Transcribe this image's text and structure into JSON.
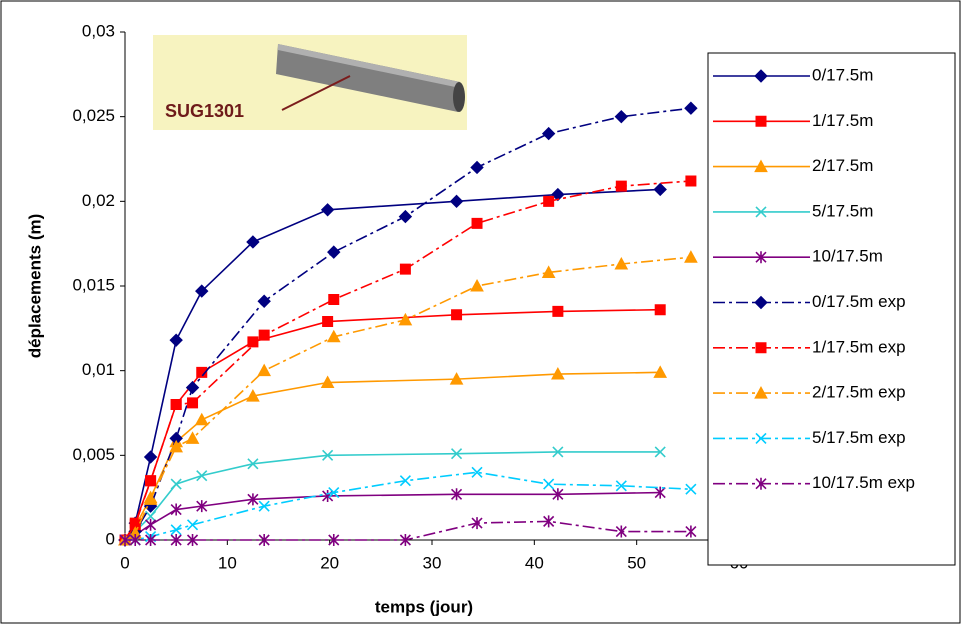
{
  "chart_data": {
    "type": "line",
    "xlabel": "temps (jour)",
    "ylabel": "déplacements (m)",
    "annotations": [
      "SUG1301"
    ],
    "xlim": [
      0,
      60
    ],
    "xticks": [
      0,
      10,
      20,
      30,
      40,
      50,
      60
    ],
    "ylim": [
      0,
      0.03
    ],
    "yticks": [
      0,
      {
        "value": 0.005,
        "label": "0,005"
      },
      {
        "value": 0.01,
        "label": "0,01"
      },
      {
        "value": 0.015,
        "label": "0,015"
      },
      {
        "value": 0.02,
        "label": "0,02"
      },
      {
        "value": 0.025,
        "label": "0,025"
      },
      {
        "value": 0.03,
        "label": "0,03"
      }
    ],
    "grid": false,
    "legend": "right",
    "series": [
      {
        "name": "0/17.5m",
        "color": "#000080",
        "marker": "diamond",
        "style": "solid",
        "x": [
          0,
          1,
          2.5,
          5,
          7.5,
          12.5,
          19.8,
          32.4,
          42.3,
          52.3
        ],
        "values": [
          0,
          0.001,
          0.0049,
          0.0118,
          0.0147,
          0.0176,
          0.0195,
          0.02,
          0.0204,
          0.0207
        ]
      },
      {
        "name": "1/17.5m",
        "color": "#ff0000",
        "marker": "square",
        "style": "solid",
        "x": [
          0,
          1,
          2.5,
          5,
          7.5,
          12.5,
          19.8,
          32.4,
          42.3,
          52.3
        ],
        "values": [
          0,
          0.001,
          0.0035,
          0.008,
          0.0099,
          0.0117,
          0.0129,
          0.0133,
          0.0135,
          0.0136
        ]
      },
      {
        "name": "2/17.5m",
        "color": "#ff9900",
        "marker": "triangle",
        "style": "solid",
        "x": [
          0,
          1,
          2.5,
          5,
          7.5,
          12.5,
          19.8,
          32.4,
          42.3,
          52.3
        ],
        "values": [
          0,
          0.0008,
          0.0025,
          0.0058,
          0.0071,
          0.0085,
          0.0093,
          0.0095,
          0.0098,
          0.0099
        ]
      },
      {
        "name": "5/17.5m",
        "color": "#33cccc",
        "marker": "x",
        "style": "solid",
        "x": [
          0,
          1,
          2.5,
          5,
          7.5,
          12.5,
          19.8,
          32.4,
          42.3,
          52.3
        ],
        "values": [
          0,
          0.0005,
          0.0014,
          0.0033,
          0.0038,
          0.0045,
          0.005,
          0.0051,
          0.0052,
          0.0052
        ]
      },
      {
        "name": "10/17.5m",
        "color": "#800080",
        "marker": "star",
        "style": "solid",
        "x": [
          0,
          1,
          2.5,
          5,
          7.5,
          12.5,
          19.8,
          32.4,
          42.3,
          52.3
        ],
        "values": [
          0,
          0.0003,
          0.0009,
          0.0018,
          0.002,
          0.0024,
          0.0026,
          0.0027,
          0.0027,
          0.0028
        ]
      },
      {
        "name": "0/17.5m exp",
        "color": "#000080",
        "marker": "diamond",
        "style": "dashdot",
        "x": [
          0,
          1,
          2.5,
          5,
          6.6,
          13.6,
          20.4,
          27.4,
          34.4,
          41.4,
          48.5,
          55.3
        ],
        "values": [
          0,
          0.0005,
          0.002,
          0.006,
          0.009,
          0.0141,
          0.017,
          0.0191,
          0.022,
          0.024,
          0.025,
          0.0255
        ]
      },
      {
        "name": "1/17.5m exp",
        "color": "#ff0000",
        "marker": "square",
        "style": "dashdot",
        "x": [
          0,
          1,
          2.5,
          5,
          6.6,
          13.6,
          20.4,
          27.4,
          34.4,
          41.4,
          48.5,
          55.3
        ],
        "values": [
          0,
          0.0009,
          0.0035,
          0.008,
          0.0081,
          0.0121,
          0.0142,
          0.016,
          0.0187,
          0.02,
          0.0209,
          0.0212
        ]
      },
      {
        "name": "2/17.5m exp",
        "color": "#ff9900",
        "marker": "triangle",
        "style": "dashdot",
        "x": [
          0,
          1,
          2.5,
          5,
          6.6,
          13.6,
          20.4,
          27.4,
          34.4,
          41.4,
          48.5,
          55.3
        ],
        "values": [
          0,
          0.0004,
          0.0024,
          0.0055,
          0.006,
          0.01,
          0.012,
          0.013,
          0.015,
          0.0158,
          0.0163,
          0.0167
        ]
      },
      {
        "name": "5/17.5m exp",
        "color": "#00ccff",
        "marker": "x",
        "style": "dashdot",
        "x": [
          0,
          1,
          2.5,
          5,
          6.6,
          13.6,
          20.4,
          27.4,
          34.4,
          41.4,
          48.5,
          55.3
        ],
        "values": [
          0,
          0,
          0.0002,
          0.0006,
          0.0009,
          0.002,
          0.0028,
          0.0035,
          0.004,
          0.0033,
          0.0032,
          0.003
        ]
      },
      {
        "name": "10/17.5m exp",
        "color": "#800080",
        "marker": "star",
        "style": "dashdot",
        "x": [
          0,
          1,
          2.5,
          5,
          6.6,
          13.6,
          20.4,
          27.4,
          34.4,
          41.4,
          48.5,
          55.3
        ],
        "values": [
          0,
          0,
          0,
          0,
          0,
          0,
          0,
          0,
          0.001,
          0.0011,
          0.0005,
          0.0005
        ]
      }
    ]
  }
}
